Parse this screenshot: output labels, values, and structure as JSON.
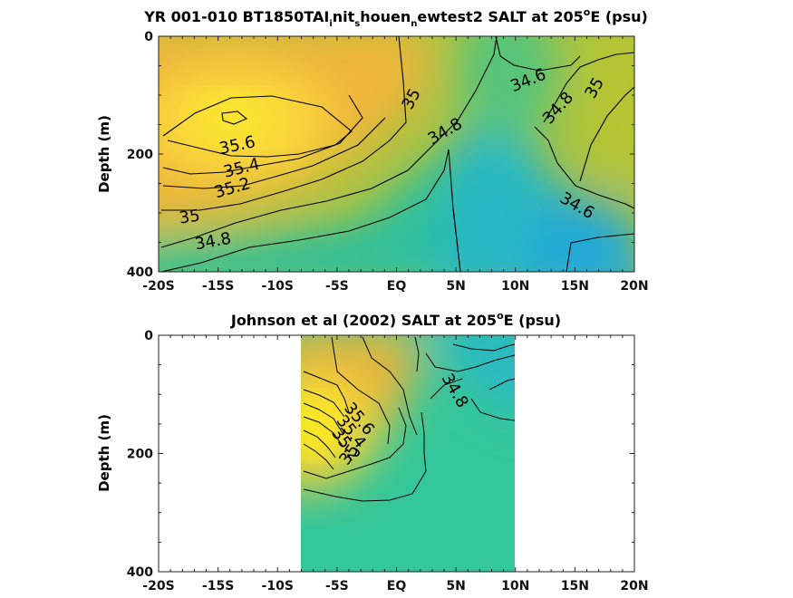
{
  "chart_data": [
    {
      "type": "heatmap",
      "title": {
        "pre": "YR 001-010 BT1850TAI",
        "s1": "i",
        "m1": "nit",
        "s2": "s",
        "m2": "houen",
        "s3": "n",
        "m3": "ewtest2 SALT at 205",
        "sup": "o",
        "post": "E (psu)"
      },
      "ylabel": "Depth (m)",
      "xlim": [
        -20,
        20
      ],
      "ylim": [
        0,
        400
      ],
      "x_ticks": [
        "-20S",
        "-15S",
        "-10S",
        "-5S",
        "EQ",
        "5N",
        "10N",
        "15N",
        "20N"
      ],
      "y_ticks": [
        "0",
        "200",
        "400"
      ],
      "contour_labels": [
        "35",
        "35.6",
        "35.4",
        "35.2",
        "35",
        "34.8",
        "34.8",
        "34.6",
        "34.8",
        "35",
        "34.6"
      ],
      "colors": {
        "high": "#f9e51f",
        "mid": "#a8c33c",
        "low": "#27b0cc"
      }
    },
    {
      "type": "heatmap",
      "title": {
        "pre": "Johnson et al (2002) SALT at 205",
        "sup": "o",
        "post": "E (psu)"
      },
      "ylabel": "Depth (m)",
      "xlim": [
        -20,
        20
      ],
      "ylim": [
        0,
        400
      ],
      "data_extent_x": [
        -8,
        10
      ],
      "x_ticks": [
        "-20S",
        "-15S",
        "-10S",
        "-5S",
        "EQ",
        "5N",
        "10N",
        "15N",
        "20N"
      ],
      "y_ticks": [
        "0",
        "200",
        "400"
      ],
      "contour_labels": [
        "34.8",
        "35.6",
        "35.4",
        "35.2",
        "35"
      ],
      "colors": {
        "high": "#fbec1e",
        "mid": "#33c69b",
        "low": "#22b6cf"
      }
    }
  ]
}
